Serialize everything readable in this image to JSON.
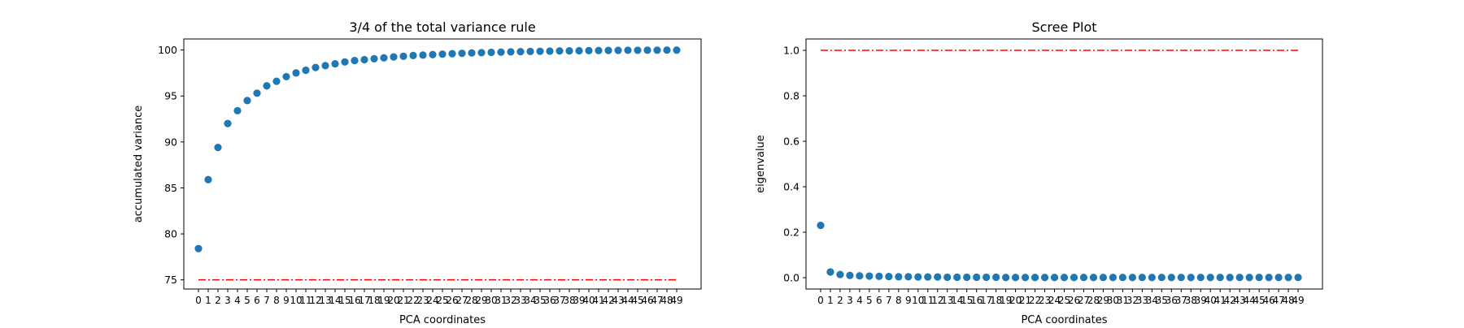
{
  "colors": {
    "points": "#1f77b4",
    "reference_line": "#ff0000",
    "axes": "#000000",
    "background": "#ffffff"
  },
  "chart_data": [
    {
      "type": "scatter",
      "title": "3/4 of the total variance rule",
      "xlabel": "PCA coordinates",
      "ylabel": "accumulated variance",
      "x": [
        0,
        1,
        2,
        3,
        4,
        5,
        6,
        7,
        8,
        9,
        10,
        11,
        12,
        13,
        14,
        15,
        16,
        17,
        18,
        19,
        20,
        21,
        22,
        23,
        24,
        25,
        26,
        27,
        28,
        29,
        30,
        31,
        32,
        33,
        34,
        35,
        36,
        37,
        38,
        39,
        40,
        41,
        42,
        43,
        44,
        45,
        46,
        47,
        48,
        49
      ],
      "x_tick_labels": [
        "0",
        "1",
        "2",
        "3",
        "4",
        "5",
        "6",
        "7",
        "8",
        "9",
        "10",
        "11",
        "12",
        "13",
        "14",
        "15",
        "16",
        "17",
        "18",
        "19",
        "20",
        "21",
        "22",
        "23",
        "24",
        "25",
        "26",
        "27",
        "28",
        "29",
        "30",
        "31",
        "32",
        "33",
        "34",
        "35",
        "36",
        "37",
        "38",
        "39",
        "40",
        "41",
        "42",
        "43",
        "44",
        "45",
        "46",
        "47",
        "48",
        "49"
      ],
      "values": [
        78.4,
        85.9,
        89.4,
        92.0,
        93.4,
        94.5,
        95.3,
        96.1,
        96.6,
        97.1,
        97.5,
        97.8,
        98.1,
        98.3,
        98.5,
        98.7,
        98.85,
        98.95,
        99.05,
        99.15,
        99.25,
        99.32,
        99.4,
        99.45,
        99.5,
        99.55,
        99.6,
        99.64,
        99.68,
        99.71,
        99.74,
        99.77,
        99.8,
        99.82,
        99.84,
        99.86,
        99.88,
        99.9,
        99.91,
        99.92,
        99.93,
        99.94,
        99.95,
        99.96,
        99.97,
        99.97,
        99.98,
        99.98,
        99.99,
        99.99
      ],
      "reference_line": {
        "y": 75,
        "x_range": [
          0,
          49
        ],
        "style": "dash-dot",
        "color": "#ff0000"
      },
      "ylim": [
        74,
        101.2
      ],
      "yticks": [
        75,
        80,
        85,
        90,
        95,
        100
      ],
      "xlim": [
        -1.5,
        51.5
      ],
      "grid": false
    },
    {
      "type": "scatter",
      "title": "Scree Plot",
      "xlabel": "PCA coordinates",
      "ylabel": "eigenvalue",
      "x": [
        0,
        1,
        2,
        3,
        4,
        5,
        6,
        7,
        8,
        9,
        10,
        11,
        12,
        13,
        14,
        15,
        16,
        17,
        18,
        19,
        20,
        21,
        22,
        23,
        24,
        25,
        26,
        27,
        28,
        29,
        30,
        31,
        32,
        33,
        34,
        35,
        36,
        37,
        38,
        39,
        40,
        41,
        42,
        43,
        44,
        45,
        46,
        47,
        48,
        49
      ],
      "x_tick_labels": [
        "0",
        "1",
        "2",
        "3",
        "4",
        "5",
        "6",
        "7",
        "8",
        "9",
        "10",
        "11",
        "12",
        "13",
        "14",
        "15",
        "16",
        "17",
        "18",
        "19",
        "20",
        "21",
        "22",
        "23",
        "24",
        "25",
        "26",
        "27",
        "28",
        "29",
        "30",
        "31",
        "32",
        "33",
        "34",
        "35",
        "36",
        "37",
        "38",
        "39",
        "40",
        "41",
        "42",
        "43",
        "44",
        "45",
        "46",
        "47",
        "48",
        "49"
      ],
      "values": [
        0.23,
        0.025,
        0.014,
        0.01,
        0.008,
        0.007,
        0.006,
        0.005,
        0.004,
        0.004,
        0.003,
        0.003,
        0.003,
        0.002,
        0.002,
        0.002,
        0.002,
        0.002,
        0.002,
        0.001,
        0.001,
        0.001,
        0.001,
        0.001,
        0.001,
        0.001,
        0.001,
        0.001,
        0.001,
        0.001,
        0.001,
        0.001,
        0.001,
        0.001,
        0.001,
        0.001,
        0.001,
        0.001,
        0.001,
        0.001,
        0.001,
        0.001,
        0.001,
        0.001,
        0.001,
        0.001,
        0.001,
        0.001,
        0.001,
        0.001
      ],
      "reference_line": {
        "y": 1.0,
        "x_range": [
          0,
          49
        ],
        "style": "dash-dot",
        "color": "#ff0000"
      },
      "ylim": [
        -0.05,
        1.05
      ],
      "yticks": [
        0.0,
        0.2,
        0.4,
        0.6,
        0.8,
        1.0
      ],
      "ytick_labels": [
        "0.0",
        "0.2",
        "0.4",
        "0.6",
        "0.8",
        "1.0"
      ],
      "xlim": [
        -1.5,
        51.5
      ],
      "grid": false
    }
  ]
}
